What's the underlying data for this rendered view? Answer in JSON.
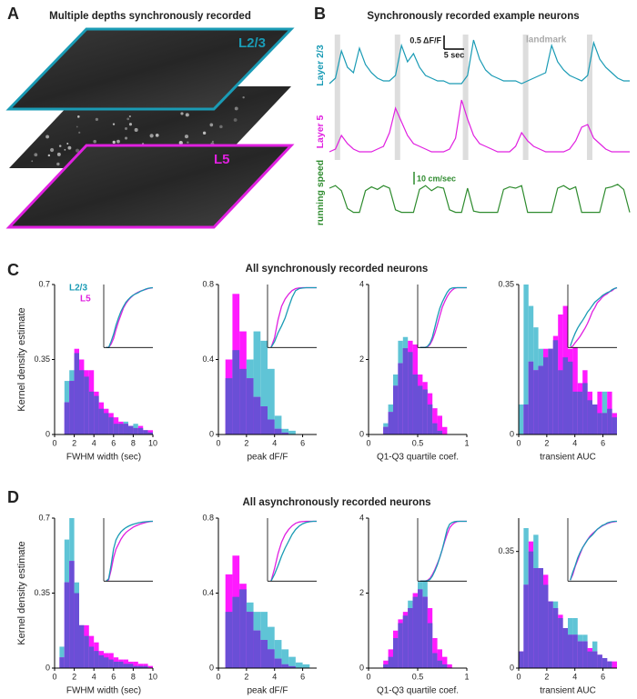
{
  "panel_labels": [
    "A",
    "B",
    "C",
    "D"
  ],
  "panel_a": {
    "title": "Multiple depths synchronously recorded",
    "layers": [
      "L2/3",
      "L5"
    ]
  },
  "rows": [
    {
      "title": "All synchronously recorded neurons",
      "ylabel": "Kernel density estimate"
    },
    {
      "title": "All asynchronously recorded neurons",
      "ylabel": "Kernel density estimate"
    }
  ],
  "chart_data": [
    {
      "type": "line",
      "title": "Synchronously recorded example neurons",
      "x": [
        0,
        1.5,
        3,
        4.5,
        6,
        7.5,
        9,
        10.5,
        12,
        13.5,
        15,
        16.5,
        18,
        19.5,
        21,
        22.5,
        24,
        25.5,
        27,
        28.5,
        30,
        31.5,
        33,
        34.5,
        36,
        37.5,
        39,
        40.5,
        42,
        43.5,
        45,
        46.5,
        48,
        49.5,
        51,
        52.5,
        54,
        55.5,
        57,
        58.5,
        60,
        61.5,
        63,
        64.5,
        66,
        67.5,
        69,
        70.5,
        72,
        73.5,
        75
      ],
      "series": [
        {
          "name": "Layer 2/3",
          "color": "#1a9bb5",
          "values": [
            0.2,
            0.4,
            1.4,
            0.8,
            0.6,
            1.5,
            0.9,
            0.6,
            0.4,
            0.3,
            0.3,
            0.5,
            1.6,
            1.0,
            1.3,
            0.8,
            0.5,
            0.4,
            0.3,
            0.3,
            0.2,
            0.2,
            0.2,
            0.5,
            1.8,
            1.1,
            0.7,
            0.5,
            0.4,
            0.3,
            0.3,
            0.3,
            0.2,
            0.3,
            0.4,
            0.5,
            0.6,
            1.6,
            1.0,
            0.7,
            0.5,
            0.4,
            0.3,
            0.5,
            1.7,
            1.1,
            0.8,
            0.6,
            0.4,
            0.3,
            0.3
          ]
        },
        {
          "name": "Layer 5",
          "color": "#e020e0",
          "values": [
            0.1,
            0.2,
            0.7,
            0.4,
            0.2,
            0.1,
            0.1,
            0.1,
            0.2,
            0.3,
            0.8,
            1.7,
            1.2,
            0.7,
            0.4,
            0.3,
            0.2,
            0.1,
            0.1,
            0.1,
            0.2,
            0.6,
            2.0,
            1.3,
            0.7,
            0.4,
            0.3,
            0.2,
            0.1,
            0.1,
            0.1,
            0.3,
            0.8,
            0.5,
            0.3,
            0.2,
            0.1,
            0.1,
            0.1,
            0.1,
            0.2,
            0.5,
            1.0,
            1.1,
            0.6,
            0.4,
            0.2,
            0.1,
            0.1,
            0.1,
            0.1
          ]
        },
        {
          "name": "running speed",
          "color": "#2e8b2e",
          "values": [
            20,
            22,
            18,
            4,
            1,
            1,
            18,
            21,
            19,
            22,
            20,
            3,
            1,
            1,
            1,
            19,
            22,
            18,
            21,
            20,
            3,
            1,
            1,
            20,
            2,
            1,
            1,
            1,
            1,
            19,
            21,
            20,
            22,
            1,
            1,
            1,
            1,
            1,
            20,
            22,
            19,
            21,
            1,
            1,
            1,
            1,
            20,
            21,
            23,
            19,
            1
          ]
        }
      ],
      "landmarks": [
        2,
        17,
        34,
        49,
        65
      ],
      "landmark_label": "landmark",
      "scale_bars": [
        {
          "label": "0.5 ΔF/F",
          "value": 0.5
        },
        {
          "label": "5 sec",
          "value": 5
        },
        {
          "label": "10 cm/sec",
          "value": 10
        }
      ]
    },
    {
      "type": "histogram",
      "xlabel": "FWHM width (sec)",
      "bins": [
        0,
        0.5,
        1,
        1.5,
        2,
        2.5,
        3,
        3.5,
        4,
        4.5,
        5,
        5.5,
        6,
        6.5,
        7,
        7.5,
        8,
        8.5,
        9,
        9.5,
        10
      ],
      "series": [
        {
          "name": "L2/3",
          "color": "#5fc4d6",
          "values": [
            0,
            0,
            0.25,
            0.3,
            0.38,
            0.3,
            0.27,
            0.2,
            0.18,
            0.12,
            0.1,
            0.08,
            0.05,
            0.05,
            0.06,
            0.04,
            0.05,
            0.03,
            0.02,
            0.01
          ]
        },
        {
          "name": "L5",
          "color": "#ff1aff",
          "values": [
            0,
            0,
            0.15,
            0.25,
            0.4,
            0.35,
            0.3,
            0.3,
            0.2,
            0.15,
            0.12,
            0.1,
            0.08,
            0.06,
            0.05,
            0.04,
            0.03,
            0.04,
            0.02,
            0.02
          ]
        }
      ],
      "overlap_color": "#6a4fd6",
      "xlim": [
        0,
        10
      ],
      "xticks": [
        0,
        2,
        4,
        6,
        8,
        10
      ],
      "ylim": [
        0,
        0.7
      ],
      "yticks": [
        0,
        0.35,
        0.7
      ]
    },
    {
      "type": "histogram",
      "xlabel": "peak dF/F",
      "bins": [
        0,
        0.5,
        1,
        1.5,
        2,
        2.5,
        3,
        3.5,
        4,
        4.5,
        5,
        5.5,
        6,
        6.5,
        7
      ],
      "series": [
        {
          "color": "#5fc4d6",
          "values": [
            0,
            0.3,
            0.45,
            0.35,
            0.4,
            0.55,
            0.5,
            0.35,
            0.1,
            0.03,
            0.02,
            0,
            0,
            0
          ]
        },
        {
          "color": "#ff1aff",
          "values": [
            0,
            0.4,
            0.75,
            0.55,
            0.3,
            0.2,
            0.15,
            0.08,
            0.03,
            0.01,
            0,
            0,
            0,
            0
          ]
        }
      ],
      "overlap_color": "#6a4fd6",
      "xlim": [
        0,
        7
      ],
      "xticks": [
        0,
        2,
        4,
        6
      ],
      "ylim": [
        0,
        0.8
      ],
      "yticks": [
        0,
        0.4,
        0.8
      ]
    },
    {
      "type": "histogram",
      "xlabel": "Q1-Q3 quartile coef.",
      "bins": [
        0,
        0.05,
        0.1,
        0.15,
        0.2,
        0.25,
        0.3,
        0.35,
        0.4,
        0.45,
        0.5,
        0.55,
        0.6,
        0.65,
        0.7,
        0.75,
        0.8,
        0.85,
        0.9,
        0.95,
        1
      ],
      "series": [
        {
          "color": "#5fc4d6",
          "values": [
            0,
            0,
            0,
            0.3,
            0.8,
            1.6,
            2.5,
            2.6,
            2.2,
            1.6,
            1.3,
            1.2,
            0.8,
            0.3,
            0.1,
            0,
            0,
            0,
            0,
            0
          ]
        },
        {
          "color": "#ff1aff",
          "values": [
            0,
            0,
            0,
            0.2,
            0.6,
            1.3,
            1.9,
            2.3,
            2.5,
            2.4,
            1.6,
            1.4,
            1.1,
            0.7,
            0.5,
            0.2,
            0,
            0,
            0,
            0
          ]
        }
      ],
      "overlap_color": "#6a4fd6",
      "xlim": [
        0,
        1
      ],
      "xticks": [
        0,
        0.5,
        1
      ],
      "ylim": [
        0,
        4
      ],
      "yticks": [
        0,
        2,
        4
      ]
    },
    {
      "type": "histogram",
      "xlabel": "transient AUC",
      "bins": [
        0,
        0.35,
        0.7,
        1.05,
        1.4,
        1.75,
        2.1,
        2.45,
        2.8,
        3.15,
        3.5,
        3.85,
        4.2,
        4.55,
        4.9,
        5.25,
        5.6,
        5.95,
        6.3,
        6.65,
        7
      ],
      "series": [
        {
          "color": "#5fc4d6",
          "values": [
            0.07,
            0.35,
            0.3,
            0.25,
            0.2,
            0.18,
            0.2,
            0.22,
            0.15,
            0.18,
            0.17,
            0.1,
            0.1,
            0.12,
            0.08,
            0.07,
            0.05,
            0.1,
            0.06,
            0.04
          ]
        },
        {
          "color": "#ff1aff",
          "values": [
            0,
            0.07,
            0.17,
            0.15,
            0.16,
            0.2,
            0.2,
            0.23,
            0.28,
            0.3,
            0.2,
            0.24,
            0.12,
            0.15,
            0.1,
            0.07,
            0.1,
            0.05,
            0.1,
            0.05
          ]
        }
      ],
      "overlap_color": "#6a4fd6",
      "xlim": [
        0,
        7
      ],
      "xticks": [
        0,
        2,
        4,
        6
      ],
      "ylim": [
        0,
        0.35
      ],
      "yticks": [
        0,
        0.35
      ]
    },
    {
      "type": "histogram",
      "xlabel": "FWHM width (sec)",
      "bins": [
        0,
        0.5,
        1,
        1.5,
        2,
        2.5,
        3,
        3.5,
        4,
        4.5,
        5,
        5.5,
        6,
        6.5,
        7,
        7.5,
        8,
        8.5,
        9,
        9.5,
        10
      ],
      "series": [
        {
          "color": "#5fc4d6",
          "values": [
            0,
            0.1,
            0.6,
            0.7,
            0.4,
            0.2,
            0.15,
            0.1,
            0.08,
            0.06,
            0.05,
            0.04,
            0.03,
            0.03,
            0.02,
            0.02,
            0.01,
            0.01,
            0.01,
            0
          ]
        },
        {
          "color": "#ff1aff",
          "values": [
            0,
            0.05,
            0.4,
            0.5,
            0.35,
            0.2,
            0.2,
            0.15,
            0.12,
            0.08,
            0.07,
            0.07,
            0.05,
            0.04,
            0.04,
            0.03,
            0.03,
            0.02,
            0.02,
            0.01
          ]
        }
      ],
      "overlap_color": "#6a4fd6",
      "xlim": [
        0,
        10
      ],
      "xticks": [
        0,
        2,
        4,
        6,
        8,
        10
      ],
      "ylim": [
        0,
        0.7
      ],
      "yticks": [
        0,
        0.35,
        0.7
      ]
    },
    {
      "type": "histogram",
      "xlabel": "peak dF/F",
      "bins": [
        0,
        0.5,
        1,
        1.5,
        2,
        2.5,
        3,
        3.5,
        4,
        4.5,
        5,
        5.5,
        6,
        6.5,
        7
      ],
      "series": [
        {
          "color": "#5fc4d6",
          "values": [
            0,
            0.3,
            0.38,
            0.42,
            0.35,
            0.3,
            0.3,
            0.22,
            0.15,
            0.1,
            0.06,
            0.03,
            0.02,
            0
          ]
        },
        {
          "color": "#ff1aff",
          "values": [
            0,
            0.5,
            0.6,
            0.45,
            0.3,
            0.2,
            0.15,
            0.1,
            0.05,
            0.02,
            0.01,
            0,
            0,
            0
          ]
        }
      ],
      "overlap_color": "#6a4fd6",
      "xlim": [
        0,
        7
      ],
      "xticks": [
        0,
        2,
        4,
        6
      ],
      "ylim": [
        0,
        0.8
      ],
      "yticks": [
        0,
        0.4,
        0.8
      ]
    },
    {
      "type": "histogram",
      "xlabel": "Q1-Q3 quartile coef.",
      "bins": [
        0,
        0.05,
        0.1,
        0.15,
        0.2,
        0.25,
        0.3,
        0.35,
        0.4,
        0.45,
        0.5,
        0.55,
        0.6,
        0.65,
        0.7,
        0.75,
        0.8,
        0.85,
        0.9,
        0.95,
        1
      ],
      "series": [
        {
          "color": "#5fc4d6",
          "values": [
            0,
            0,
            0,
            0.1,
            0.3,
            0.8,
            1.2,
            1.4,
            1.8,
            1.9,
            2.3,
            2.4,
            1.2,
            0.4,
            0.2,
            0.1,
            0,
            0,
            0,
            0
          ]
        },
        {
          "color": "#ff1aff",
          "values": [
            0,
            0,
            0,
            0.2,
            0.5,
            1.0,
            1.3,
            1.5,
            1.6,
            2.0,
            2.1,
            1.9,
            1.6,
            0.8,
            0.5,
            0.3,
            0.1,
            0,
            0,
            0
          ]
        }
      ],
      "overlap_color": "#6a4fd6",
      "xlim": [
        0,
        1
      ],
      "xticks": [
        0,
        0.5,
        1
      ],
      "ylim": [
        0,
        4
      ],
      "yticks": [
        0,
        2,
        4
      ]
    },
    {
      "type": "histogram",
      "xlabel": "transient AUC",
      "bins": [
        0,
        0.35,
        0.7,
        1.05,
        1.4,
        1.75,
        2.1,
        2.45,
        2.8,
        3.15,
        3.5,
        3.85,
        4.2,
        4.55,
        4.9,
        5.25,
        5.6,
        5.95,
        6.3,
        6.65,
        7
      ],
      "series": [
        {
          "color": "#5fc4d6",
          "values": [
            0.05,
            0.42,
            0.35,
            0.4,
            0.3,
            0.25,
            0.2,
            0.2,
            0.15,
            0.12,
            0.15,
            0.15,
            0.1,
            0.1,
            0.05,
            0.08,
            0.04,
            0.03,
            0.02,
            0
          ]
        },
        {
          "color": "#ff1aff",
          "values": [
            0.05,
            0.25,
            0.38,
            0.3,
            0.3,
            0.28,
            0.2,
            0.18,
            0.16,
            0.12,
            0.1,
            0.1,
            0.08,
            0.08,
            0.06,
            0.05,
            0.04,
            0.03,
            0.02,
            0.02
          ]
        }
      ],
      "overlap_color": "#6a4fd6",
      "xlim": [
        0,
        7
      ],
      "xticks": [
        0,
        2,
        4,
        6
      ],
      "ylim": [
        0,
        0.45
      ],
      "yticks": [
        0,
        0.35
      ]
    }
  ]
}
